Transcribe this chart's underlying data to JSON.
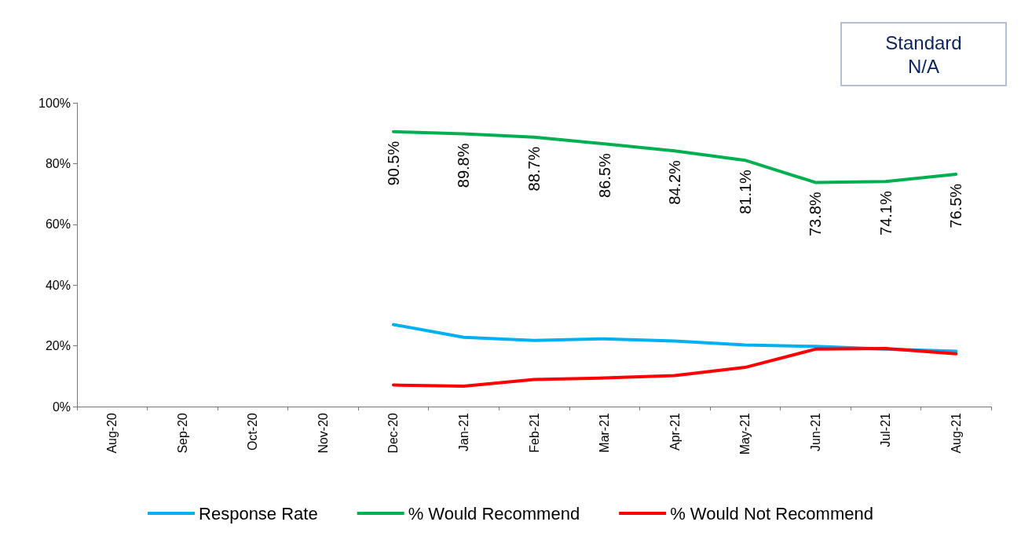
{
  "chart_data": {
    "type": "line",
    "annotations": [
      "Standard\nN/A"
    ],
    "categories": [
      "Aug-20",
      "Sep-20",
      "Oct-20",
      "Nov-20",
      "Dec-20",
      "Jan-21",
      "Feb-21",
      "Mar-21",
      "Apr-21",
      "May-21",
      "Jun-21",
      "Jul-21",
      "Aug-21"
    ],
    "series": [
      {
        "name": "Response Rate",
        "color": "#00b0f0",
        "values": [
          null,
          null,
          null,
          null,
          27.0,
          22.8,
          21.8,
          22.3,
          21.6,
          20.3,
          19.8,
          18.9,
          18.2
        ]
      },
      {
        "name": "% Would Recommend",
        "color": "#00b050",
        "values": [
          null,
          null,
          null,
          null,
          90.5,
          89.8,
          88.7,
          86.5,
          84.2,
          81.1,
          73.8,
          74.1,
          76.5
        ],
        "value_labels": [
          null,
          null,
          null,
          null,
          "90.5%",
          "89.8%",
          "88.7%",
          "86.5%",
          "84.2%",
          "81.1%",
          "73.8%",
          "74.1%",
          "76.5%"
        ]
      },
      {
        "name": "% Would Not Recommend",
        "color": "#ff0000",
        "values": [
          null,
          null,
          null,
          null,
          7.1,
          6.7,
          8.9,
          9.4,
          10.2,
          12.9,
          18.9,
          19.1,
          17.4
        ]
      }
    ],
    "ylim": [
      0,
      100
    ],
    "yticks": [
      {
        "value": 0,
        "label": "0%"
      },
      {
        "value": 20,
        "label": "20%"
      },
      {
        "value": 40,
        "label": "40%"
      },
      {
        "value": 60,
        "label": "60%"
      },
      {
        "value": 80,
        "label": "80%"
      },
      {
        "value": 100,
        "label": "100%"
      }
    ],
    "grid": false,
    "legend": "bottom",
    "marker": "none",
    "line_style": "solid"
  }
}
